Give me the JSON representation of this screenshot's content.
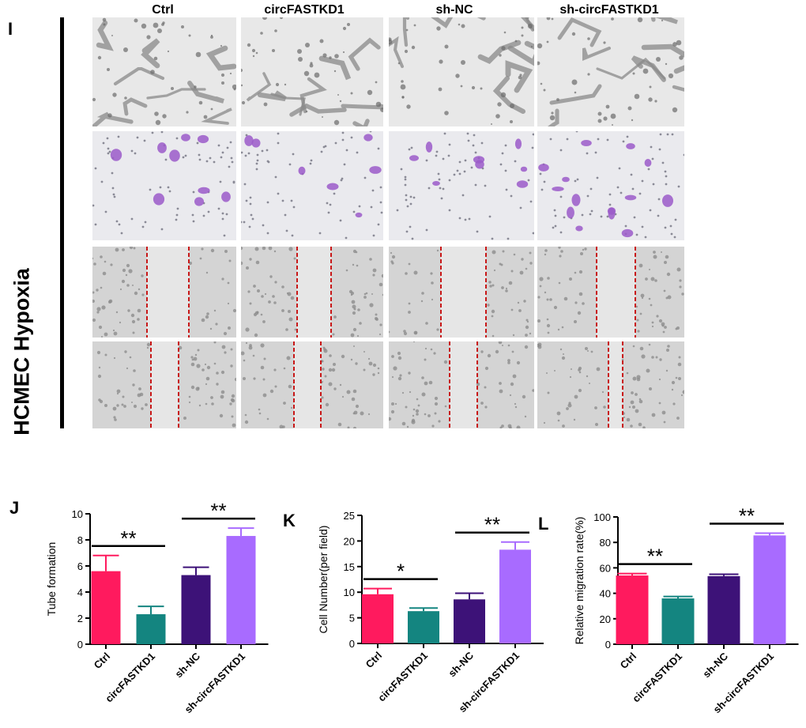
{
  "figure": {
    "panel_i": "I",
    "panel_j": "J",
    "panel_k": "K",
    "panel_l": "L",
    "side_label": "HCMEC Hypoxia",
    "groups": [
      "Ctrl",
      "circFASTKD1",
      "sh-NC",
      "sh-circFASTKD1"
    ],
    "colors": [
      "#FF1A5E",
      "#148580",
      "#3D1278",
      "#A86BFF"
    ]
  },
  "chart_data": [
    {
      "type": "bar",
      "panel": "J",
      "categories": [
        "Ctrl",
        "circFASTKD1",
        "sh-NC",
        "sh-circFASTKD1"
      ],
      "values": [
        5.6,
        2.3,
        5.3,
        8.3
      ],
      "errors": [
        1.2,
        0.6,
        0.6,
        0.6
      ],
      "ylabel": "Tube formation",
      "ylim": [
        0,
        10
      ],
      "yticks": [
        0,
        2,
        4,
        6,
        8,
        10
      ],
      "significance": [
        {
          "from": 0,
          "to": 1,
          "label": "**"
        },
        {
          "from": 2,
          "to": 3,
          "label": "**"
        }
      ]
    },
    {
      "type": "bar",
      "panel": "K",
      "categories": [
        "Ctrl",
        "circFASTKD1",
        "sh-NC",
        "sh-circFASTKD1"
      ],
      "values": [
        9.6,
        6.3,
        8.6,
        18.3
      ],
      "errors": [
        1.1,
        0.6,
        1.2,
        1.5
      ],
      "ylabel": "Cell Number(per field)",
      "ylim": [
        0,
        25
      ],
      "yticks": [
        0,
        5,
        10,
        15,
        20,
        25
      ],
      "significance": [
        {
          "from": 0,
          "to": 1,
          "label": "*"
        },
        {
          "from": 2,
          "to": 3,
          "label": "**"
        }
      ]
    },
    {
      "type": "bar",
      "panel": "L",
      "categories": [
        "Ctrl",
        "circFASTKD1",
        "sh-NC",
        "sh-circFASTKD1"
      ],
      "values": [
        54,
        36,
        53.5,
        85.5
      ],
      "errors": [
        1.5,
        1.5,
        1.5,
        1.8
      ],
      "ylabel": "Relative migration rate(%)",
      "ylim": [
        0,
        100
      ],
      "yticks": [
        0,
        20,
        40,
        60,
        80,
        100
      ],
      "significance": [
        {
          "from": 0,
          "to": 1,
          "label": "**"
        },
        {
          "from": 2,
          "to": 3,
          "label": "**"
        }
      ]
    }
  ]
}
